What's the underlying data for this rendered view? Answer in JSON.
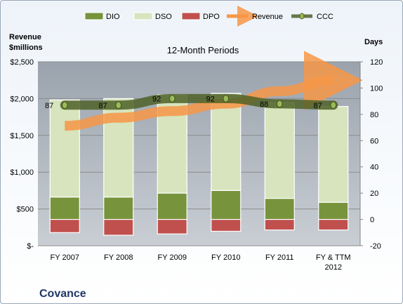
{
  "chart_data": {
    "type": "bar",
    "title": "12-Month Periods",
    "company": "Covance",
    "left_axis_title": [
      "Revenue",
      "$millions"
    ],
    "right_axis_title": "Days",
    "categories": [
      [
        "FY 2007"
      ],
      [
        "FY 2008"
      ],
      [
        "FY 2009"
      ],
      [
        "FY 2010"
      ],
      [
        "FY 2011"
      ],
      [
        "FY & TTM",
        "2012"
      ]
    ],
    "left_ticks": [
      "$-",
      "$500",
      "$1,000",
      "$1,500",
      "$2,000",
      "$2,500"
    ],
    "right_ticks": [
      "-20",
      "0",
      "20",
      "40",
      "60",
      "80",
      "100",
      "120"
    ],
    "ylim_right": [
      -20,
      120
    ],
    "ylim_left": [
      0,
      2500
    ],
    "series": [
      {
        "name": "DIO",
        "color": "#77933c",
        "values": [
          17,
          17,
          20,
          22,
          16,
          13
        ]
      },
      {
        "name": "DSO",
        "color": "#d7e4bd",
        "values": [
          74,
          75,
          75,
          74,
          73,
          73
        ]
      },
      {
        "name": "DPO",
        "color": "#c0504d",
        "values": [
          -10,
          -12,
          -11,
          -9,
          -8,
          -8
        ]
      },
      {
        "name": "Revenue",
        "color": "#f79646",
        "values": [
          1630,
          1740,
          1830,
          1930,
          2100,
          2250
        ]
      },
      {
        "name": "CCC",
        "color": "#4f6228",
        "values": [
          87,
          87,
          92,
          92,
          88,
          87
        ]
      }
    ],
    "ccc_labels": [
      "87",
      "87",
      "92",
      "92",
      "88",
      "87"
    ],
    "legend": [
      "DIO",
      "DSO",
      "DPO",
      "Revenue",
      "CCC"
    ],
    "gridlines": true,
    "legend_position": "top"
  }
}
